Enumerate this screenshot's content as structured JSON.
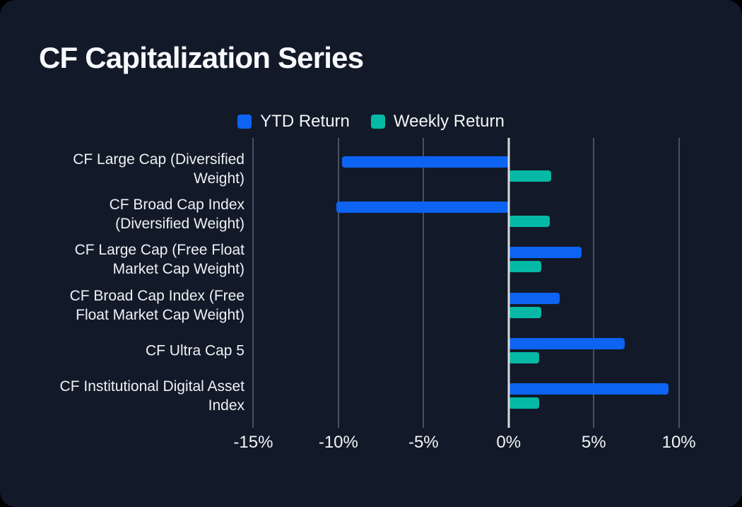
{
  "card": {
    "title": "CF Capitalization Series"
  },
  "legend": {
    "items": [
      {
        "label": "YTD Return",
        "color": "#0d63f2"
      },
      {
        "label": "Weekly Return",
        "color": "#05b9a6"
      }
    ]
  },
  "chart_data": {
    "type": "bar",
    "orientation": "horizontal",
    "title": "CF Capitalization Series",
    "categories": [
      "CF Large Cap (Diversified Weight)",
      "CF Broad Cap Index (Diversified Weight)",
      "CF Large Cap (Free Float Market Cap Weight)",
      "CF Broad Cap Index (Free Float Market Cap Weight)",
      "CF Ultra Cap 5",
      "CF Institutional Digital Asset Index"
    ],
    "series": [
      {
        "name": "YTD Return",
        "color": "#0d63f2",
        "values": [
          -9.8,
          -10.1,
          4.3,
          3.0,
          6.8,
          9.4
        ]
      },
      {
        "name": "Weekly Return",
        "color": "#05b9a6",
        "values": [
          2.5,
          2.4,
          1.9,
          1.9,
          1.8,
          1.8
        ]
      }
    ],
    "value_unit": "%",
    "xlim": [
      -15.1,
      11.8
    ],
    "ticks": [
      -15,
      -10,
      -5,
      0,
      5,
      10
    ],
    "tick_labels": [
      "-15%",
      "-10%",
      "-5%",
      "0%",
      "5%",
      "10%"
    ],
    "grid": true,
    "legend_position": "top-center",
    "colors": {
      "background": "#121a29",
      "gridline": "#49505e",
      "zero_line": "#d9dbde",
      "text": "#eef1f4"
    }
  }
}
